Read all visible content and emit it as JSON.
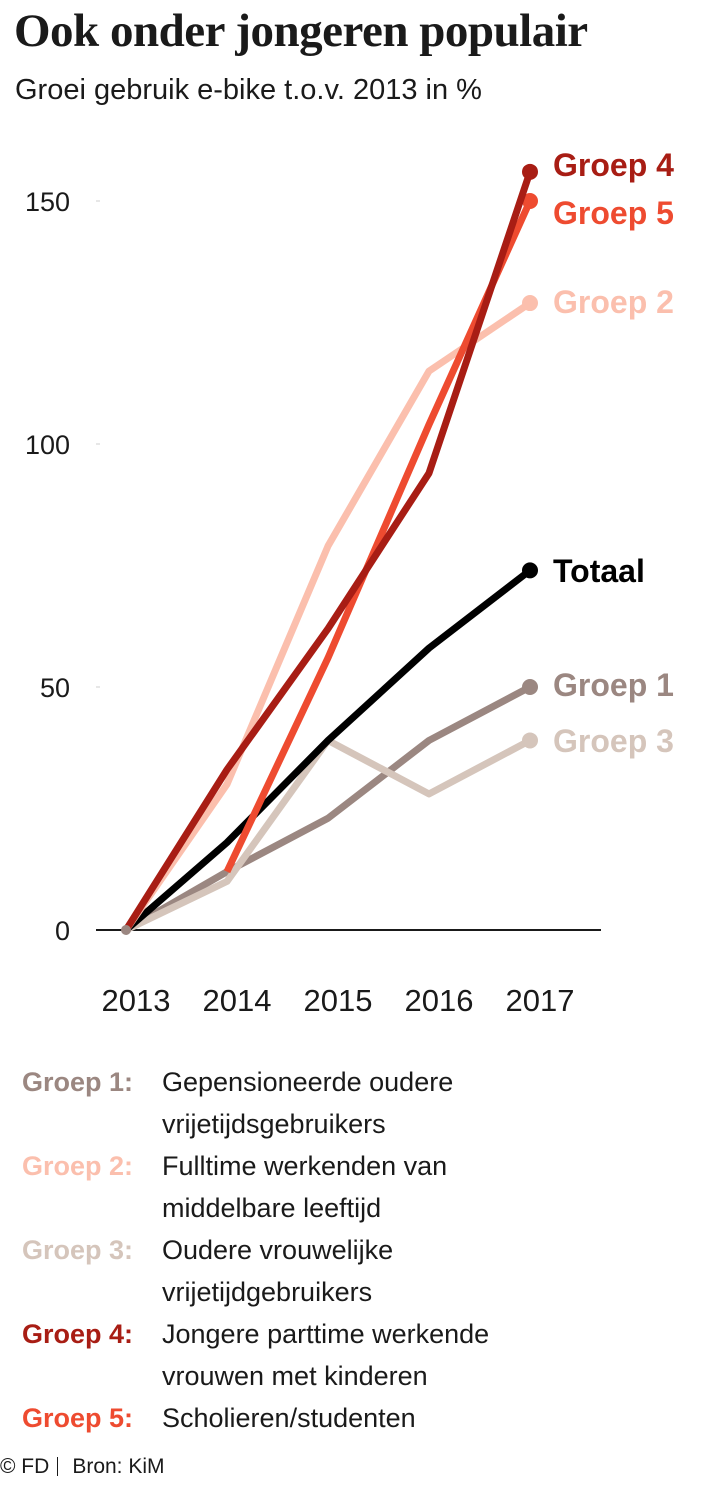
{
  "header": {
    "title": "Ook onder jongeren populair",
    "subtitle": "Groei gebruik e-bike t.o.v. 2013 in %"
  },
  "chart_data": {
    "type": "line",
    "title": "Ook onder jongeren populair",
    "subtitle": "Groei gebruik e-bike t.o.v. 2013 in %",
    "xlabel": "",
    "ylabel": "",
    "x": [
      "2013",
      "2014",
      "2015",
      "2016",
      "2017"
    ],
    "ylim": [
      0,
      160
    ],
    "yticks": [
      0,
      50,
      100,
      150
    ],
    "grid": false,
    "legend": "end-of-line labels",
    "series": [
      {
        "name": "Groep 1",
        "color": "#9b8781",
        "values": [
          0,
          12,
          23,
          39,
          50
        ]
      },
      {
        "name": "Groep 3",
        "color": "#d5c5bb",
        "values": [
          0,
          10,
          39,
          28,
          39
        ]
      },
      {
        "name": "Totaal",
        "color": "#000000",
        "values": [
          0,
          18,
          39,
          58,
          74
        ]
      },
      {
        "name": "Groep 2",
        "color": "#fbbfad",
        "values": [
          0,
          30,
          79,
          115,
          129
        ]
      },
      {
        "name": "Groep 5",
        "color": "#ee4b30",
        "values": [
          null,
          12,
          56,
          104,
          150
        ]
      },
      {
        "name": "Groep 4",
        "color": "#a81d14",
        "values": [
          0,
          33,
          62,
          94,
          156
        ]
      }
    ]
  },
  "legend": [
    {
      "key": "Groep 1:",
      "color": "#9b8781",
      "text": "Gepensioneerde oudere vrijetijdsgebruikers"
    },
    {
      "key": "Groep 2:",
      "color": "#fbbfad",
      "text": "Fulltime werkenden van middelbare leeftijd"
    },
    {
      "key": "Groep 3:",
      "color": "#d5c5bb",
      "text": "Oudere vrouwelijke vrijetijdgebruikers"
    },
    {
      "key": "Groep 4:",
      "color": "#a81d14",
      "text": "Jongere parttime werkende vrouwen met kinderen"
    },
    {
      "key": "Groep 5:",
      "color": "#ee4b30",
      "text": "Scholieren/studenten"
    }
  ],
  "footer": {
    "copyright": "© FD",
    "source": "Bron: KiM"
  }
}
